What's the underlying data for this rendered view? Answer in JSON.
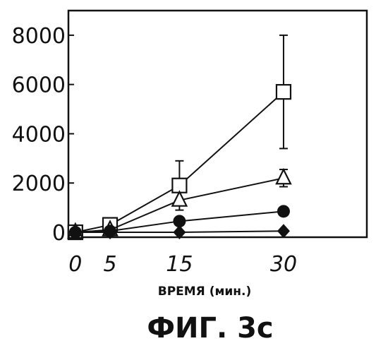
{
  "chart_data": {
    "type": "line",
    "title": "",
    "xlabel": "ВРЕМЯ (мин.)",
    "ylabel": "",
    "caption": "ФИГ. 3с",
    "x": [
      0,
      5,
      15,
      30
    ],
    "x_tick_labels": [
      "0",
      "5",
      "15",
      "30"
    ],
    "y_tick_labels": [
      "0",
      "2000",
      "4000",
      "6000",
      "8000"
    ],
    "y_ticks": [
      0,
      2000,
      4000,
      6000,
      8000
    ],
    "xlim": [
      -1,
      42
    ],
    "ylim": [
      -200,
      9000
    ],
    "grid": false,
    "legend": "none",
    "series": [
      {
        "marker": "square-open",
        "values": [
          0,
          300,
          1900,
          5700
        ],
        "error": [
          200,
          0,
          1000,
          2300
        ]
      },
      {
        "marker": "triangle-open",
        "values": [
          0,
          100,
          1300,
          2200
        ],
        "error": [
          0,
          0,
          0,
          350
        ]
      },
      {
        "marker": "circle-filled",
        "values": [
          0,
          50,
          450,
          850
        ],
        "error": [
          0,
          0,
          0,
          0
        ]
      },
      {
        "marker": "diamond-filled",
        "values": [
          0,
          0,
          0,
          50
        ],
        "error": [
          0,
          0,
          0,
          0
        ]
      }
    ]
  }
}
